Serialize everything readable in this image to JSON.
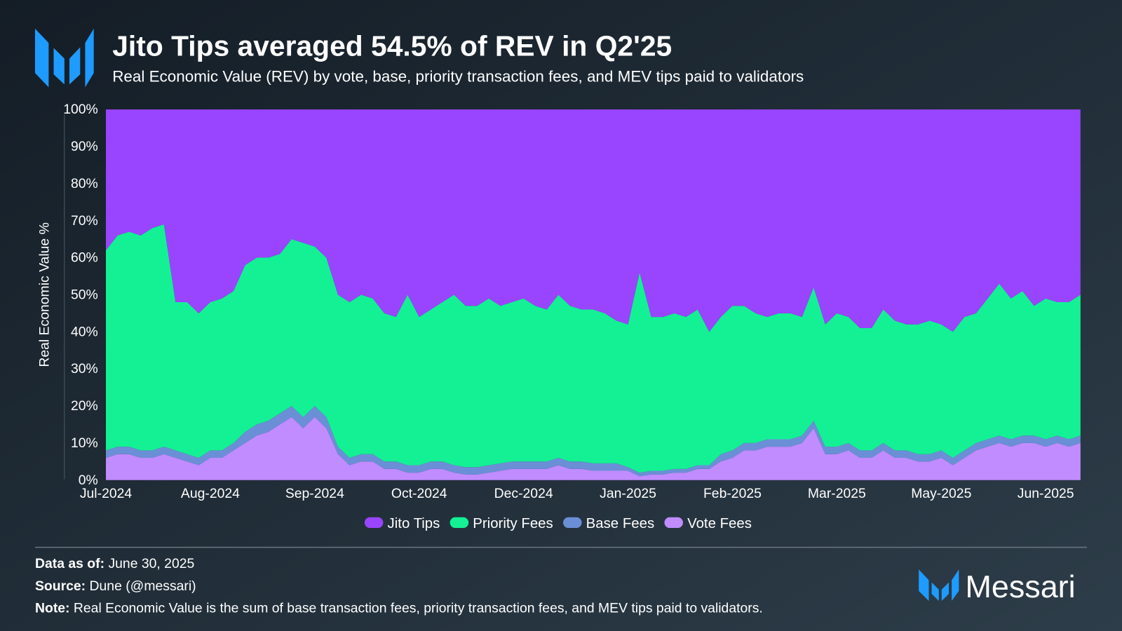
{
  "chart_data": {
    "type": "stacked_area_percent",
    "title": "Jito Tips averaged 54.5% of REV in Q2'25",
    "subtitle": "Real Economic Value (REV) by vote, base, priority transaction fees, and MEV tips paid to validators",
    "y_label": "Real Economic Value %",
    "categories": [
      "Jul-2024",
      null,
      null,
      null,
      null,
      null,
      null,
      null,
      null,
      "Aug-2024",
      null,
      null,
      null,
      null,
      null,
      null,
      null,
      null,
      "Sep-2024",
      null,
      null,
      null,
      null,
      null,
      null,
      null,
      null,
      "Oct-2024",
      null,
      null,
      null,
      null,
      null,
      null,
      null,
      null,
      "Dec-2024",
      null,
      null,
      null,
      null,
      null,
      null,
      null,
      null,
      "Jan-2025",
      null,
      null,
      null,
      null,
      null,
      null,
      null,
      null,
      "Feb-2025",
      null,
      null,
      null,
      null,
      null,
      null,
      null,
      null,
      "Mar-2025",
      null,
      null,
      null,
      null,
      null,
      null,
      null,
      null,
      "May-2025",
      null,
      null,
      null,
      null,
      null,
      null,
      null,
      null,
      "Jun-2025",
      null,
      null,
      null
    ],
    "series": [
      {
        "name": "Jito Tips",
        "color": "#9945ff",
        "values": [
          38,
          34,
          33,
          34,
          32,
          31,
          52,
          52,
          55,
          52,
          51,
          49,
          42,
          40,
          40,
          39,
          35,
          36,
          37,
          40,
          50,
          52,
          50,
          51,
          55,
          56,
          50,
          56,
          54,
          52,
          50,
          53,
          53,
          51,
          53,
          52,
          51,
          53,
          54,
          50,
          53,
          54,
          54,
          55,
          57,
          58,
          44,
          56,
          56,
          55,
          56,
          54,
          60,
          56,
          53,
          53,
          55,
          56,
          55,
          55,
          56,
          48,
          58,
          55,
          56,
          59,
          59,
          54,
          57,
          58,
          58,
          57,
          58,
          60,
          56,
          55,
          51,
          47,
          51,
          49,
          53,
          51,
          52,
          52,
          50
        ]
      },
      {
        "name": "Priority Fees",
        "color": "#14f195",
        "values": [
          54,
          57,
          58,
          58,
          60,
          60,
          40,
          41,
          39,
          40,
          41,
          41,
          45,
          45,
          44,
          43,
          45,
          47,
          43,
          43,
          41,
          42,
          43,
          42,
          40,
          39,
          46,
          40,
          41,
          43,
          46,
          43.5,
          43.5,
          45,
          42.5,
          43,
          44,
          42,
          41,
          44,
          42,
          41,
          41.5,
          40.5,
          38.5,
          38.5,
          54,
          41.5,
          41.5,
          42,
          41,
          42,
          36,
          37,
          39,
          37,
          35,
          33,
          34,
          34,
          32,
          36,
          33,
          36,
          34,
          33,
          33,
          36,
          35,
          34,
          35,
          36,
          34,
          34,
          36,
          35,
          38,
          41,
          38,
          39,
          35,
          38,
          36,
          37,
          38
        ]
      },
      {
        "name": "Base Fees",
        "color": "#6b8fd6",
        "values": [
          2,
          2,
          2,
          2,
          2,
          2,
          2,
          2,
          2,
          2,
          2,
          2,
          3,
          3,
          3,
          3,
          3,
          3,
          3,
          3,
          2,
          2,
          2,
          2,
          2,
          2,
          2,
          2,
          2,
          2,
          2,
          2,
          2,
          2,
          2,
          2,
          2,
          2,
          2,
          2,
          2,
          2,
          2,
          2,
          2,
          1,
          1,
          1,
          1,
          1,
          1,
          1,
          1,
          2,
          2,
          2,
          2,
          2,
          2,
          2,
          2,
          2,
          2,
          2,
          2,
          2,
          2,
          2,
          2,
          2,
          2,
          2,
          2,
          2,
          2,
          2,
          2,
          2,
          2,
          2,
          2,
          2,
          2,
          2,
          2
        ]
      },
      {
        "name": "Vote Fees",
        "color": "#c08cff",
        "values": [
          6,
          7,
          7,
          6,
          6,
          7,
          6,
          5,
          4,
          6,
          6,
          8,
          10,
          12,
          13,
          15,
          17,
          14,
          17,
          14,
          7,
          4,
          5,
          5,
          3,
          3,
          2,
          2,
          3,
          3,
          2,
          1.5,
          1.5,
          2,
          2.5,
          3,
          3,
          3,
          3,
          4,
          3,
          3,
          2.5,
          2.5,
          2.5,
          2.5,
          1,
          1.5,
          1.5,
          2,
          2,
          3,
          3,
          5,
          6,
          8,
          8,
          9,
          9,
          9,
          10,
          14,
          7,
          7,
          8,
          6,
          6,
          8,
          6,
          6,
          5,
          5,
          6,
          4,
          6,
          8,
          9,
          10,
          9,
          10,
          10,
          9,
          10,
          9,
          10
        ]
      }
    ],
    "ylim": [
      0,
      100
    ],
    "yticks": [
      {
        "value": 0,
        "label": "0%"
      },
      {
        "value": 10,
        "label": "10%"
      },
      {
        "value": 20,
        "label": "20%"
      },
      {
        "value": 30,
        "label": "30%"
      },
      {
        "value": 40,
        "label": "40%"
      },
      {
        "value": 50,
        "label": "50%"
      },
      {
        "value": 60,
        "label": "60%"
      },
      {
        "value": 70,
        "label": "70%"
      },
      {
        "value": 80,
        "label": "80%"
      },
      {
        "value": 90,
        "label": "90%"
      },
      {
        "value": 100,
        "label": "100%"
      }
    ],
    "legend": "bottom"
  },
  "footer": {
    "date_label": "Data as of:",
    "date": "June 30, 2025",
    "source_label": "Source:",
    "source": "Dune (@messari)",
    "note_label": "Note:",
    "note": "Real Economic Value is the sum of base transaction fees, priority transaction fees, and MEV tips paid to validators."
  },
  "brand": "Messari"
}
